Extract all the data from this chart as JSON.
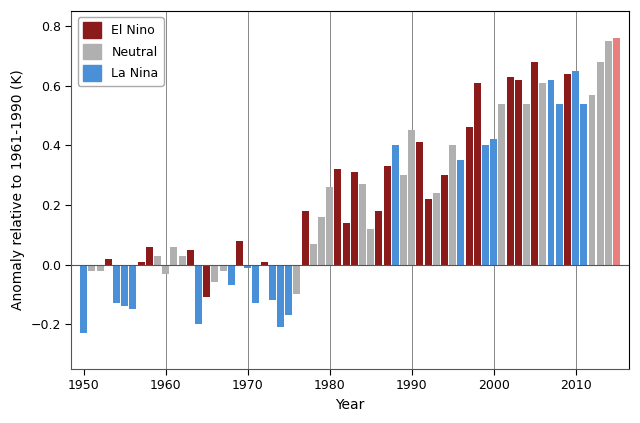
{
  "years": [
    1950,
    1951,
    1952,
    1953,
    1954,
    1955,
    1956,
    1957,
    1958,
    1959,
    1960,
    1961,
    1962,
    1963,
    1964,
    1965,
    1966,
    1967,
    1968,
    1969,
    1970,
    1971,
    1972,
    1973,
    1974,
    1975,
    1976,
    1977,
    1978,
    1979,
    1980,
    1981,
    1982,
    1983,
    1984,
    1985,
    1986,
    1987,
    1988,
    1989,
    1990,
    1991,
    1992,
    1993,
    1994,
    1995,
    1996,
    1997,
    1998,
    1999,
    2000,
    2001,
    2002,
    2003,
    2004,
    2005,
    2006,
    2007,
    2008,
    2009,
    2010,
    2011,
    2012,
    2013,
    2014,
    2015
  ],
  "anomalies": [
    -0.23,
    -0.02,
    -0.02,
    0.02,
    -0.13,
    -0.14,
    -0.15,
    0.01,
    0.06,
    0.03,
    -0.03,
    0.06,
    0.03,
    0.05,
    -0.2,
    -0.11,
    -0.06,
    -0.02,
    -0.07,
    0.08,
    -0.01,
    -0.13,
    0.01,
    -0.12,
    -0.21,
    -0.17,
    -0.1,
    0.18,
    0.07,
    0.16,
    0.26,
    0.32,
    0.14,
    0.31,
    0.27,
    0.12,
    0.18,
    0.33,
    0.4,
    0.3,
    0.45,
    0.41,
    0.22,
    0.24,
    0.3,
    0.4,
    0.35,
    0.46,
    0.61,
    0.4,
    0.42,
    0.54,
    0.63,
    0.62,
    0.54,
    0.68,
    0.61,
    0.62,
    0.54,
    0.64,
    0.65,
    0.54,
    0.57,
    0.68,
    0.75,
    0.76
  ],
  "enso_type": [
    "La Nina",
    "Neutral",
    "Neutral",
    "El Nino",
    "La Nina",
    "La Nina",
    "La Nina",
    "El Nino",
    "El Nino",
    "Neutral",
    "Neutral",
    "Neutral",
    "Neutral",
    "El Nino",
    "La Nina",
    "El Nino",
    "Neutral",
    "Neutral",
    "La Nina",
    "El Nino",
    "La Nina",
    "La Nina",
    "El Nino",
    "La Nina",
    "La Nina",
    "La Nina",
    "Neutral",
    "El Nino",
    "Neutral",
    "Neutral",
    "Neutral",
    "El Nino",
    "El Nino",
    "El Nino",
    "Neutral",
    "Neutral",
    "El Nino",
    "El Nino",
    "La Nina",
    "Neutral",
    "Neutral",
    "El Nino",
    "El Nino",
    "Neutral",
    "El Nino",
    "Neutral",
    "La Nina",
    "El Nino",
    "El Nino",
    "La Nina",
    "La Nina",
    "Neutral",
    "El Nino",
    "El Nino",
    "Neutral",
    "El Nino",
    "Neutral",
    "La Nina",
    "La Nina",
    "El Nino",
    "La Nina",
    "La Nina",
    "Neutral",
    "Neutral",
    "Neutral",
    "El Nino"
  ],
  "el_nino_color": "#8B1A1A",
  "neutral_color": "#B0B0B0",
  "la_nina_color": "#4A90D9",
  "el_nino_highlight": "#E88080",
  "background_color": "#FFFFFF",
  "ylabel": "Anomaly relative to 1961-1990 (K)",
  "xlabel": "Year",
  "ylim": [
    -0.35,
    0.85
  ],
  "yticks": [
    -0.2,
    0.0,
    0.2,
    0.4,
    0.6,
    0.8
  ],
  "xtick_decade_positions": [
    1950,
    1960,
    1970,
    1980,
    1990,
    2000,
    2010
  ],
  "vline_positions": [
    1960,
    1970,
    1980,
    1990,
    2000,
    2010
  ],
  "title_fontsize": 10,
  "axis_fontsize": 10,
  "legend_fontsize": 9
}
